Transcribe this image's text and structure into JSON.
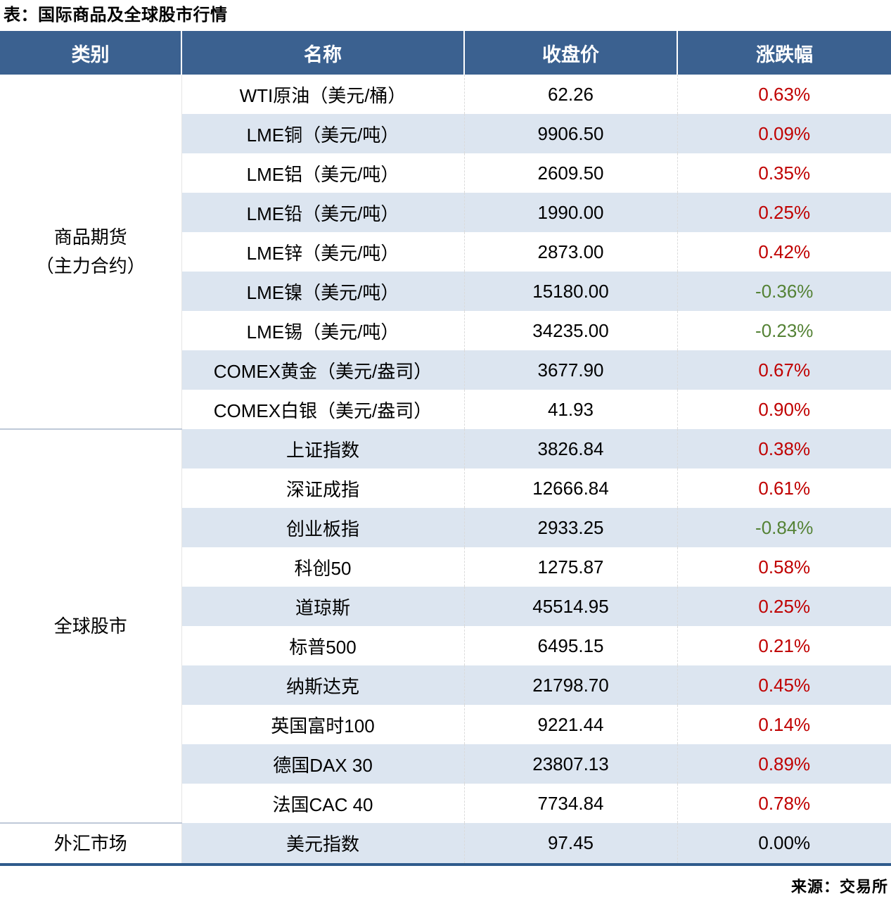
{
  "page_title": "表：国际商品及全球股市行情",
  "source_note": "来源：交易所",
  "colors": {
    "header_bg": "#3B6190",
    "row_alt_bg": "#DCE5F0",
    "row_bg": "#FFFFFF",
    "up_text": "#C00000",
    "down_text": "#548235",
    "flat_text": "#000000",
    "table_bottom_border": "#2F5B8C"
  },
  "table": {
    "headers": [
      "类别",
      "名称",
      "收盘价",
      "涨跌幅"
    ],
    "groups": [
      {
        "category_lines": [
          "商品期货",
          "（主力合约）"
        ],
        "rows": [
          {
            "name": "WTI原油（美元/桶）",
            "close": "62.26",
            "change": "0.63%",
            "direction": "up"
          },
          {
            "name": "LME铜（美元/吨）",
            "close": "9906.50",
            "change": "0.09%",
            "direction": "up"
          },
          {
            "name": "LME铝（美元/吨）",
            "close": "2609.50",
            "change": "0.35%",
            "direction": "up"
          },
          {
            "name": "LME铅（美元/吨）",
            "close": "1990.00",
            "change": "0.25%",
            "direction": "up"
          },
          {
            "name": "LME锌（美元/吨）",
            "close": "2873.00",
            "change": "0.42%",
            "direction": "up"
          },
          {
            "name": "LME镍（美元/吨）",
            "close": "15180.00",
            "change": "-0.36%",
            "direction": "down"
          },
          {
            "name": "LME锡（美元/吨）",
            "close": "34235.00",
            "change": "-0.23%",
            "direction": "down"
          },
          {
            "name": "COMEX黄金（美元/盎司）",
            "close": "3677.90",
            "change": "0.67%",
            "direction": "up"
          },
          {
            "name": "COMEX白银（美元/盎司）",
            "close": "41.93",
            "change": "0.90%",
            "direction": "up"
          }
        ]
      },
      {
        "category_lines": [
          "全球股市"
        ],
        "rows": [
          {
            "name": "上证指数",
            "close": "3826.84",
            "change": "0.38%",
            "direction": "up"
          },
          {
            "name": "深证成指",
            "close": "12666.84",
            "change": "0.61%",
            "direction": "up"
          },
          {
            "name": "创业板指",
            "close": "2933.25",
            "change": "-0.84%",
            "direction": "down"
          },
          {
            "name": "科创50",
            "close": "1275.87",
            "change": "0.58%",
            "direction": "up"
          },
          {
            "name": "道琼斯",
            "close": "45514.95",
            "change": "0.25%",
            "direction": "up"
          },
          {
            "name": "标普500",
            "close": "6495.15",
            "change": "0.21%",
            "direction": "up"
          },
          {
            "name": "纳斯达克",
            "close": "21798.70",
            "change": "0.45%",
            "direction": "up"
          },
          {
            "name": "英国富时100",
            "close": "9221.44",
            "change": "0.14%",
            "direction": "up"
          },
          {
            "name": "德国DAX 30",
            "close": "23807.13",
            "change": "0.89%",
            "direction": "up"
          },
          {
            "name": "法国CAC 40",
            "close": "7734.84",
            "change": "0.78%",
            "direction": "up"
          }
        ]
      },
      {
        "category_lines": [
          "外汇市场"
        ],
        "rows": [
          {
            "name": "美元指数",
            "close": "97.45",
            "change": "0.00%",
            "direction": "flat"
          }
        ]
      }
    ]
  },
  "chart_data": {
    "type": "table",
    "title": "表：国际商品及全球股市行情",
    "columns": [
      "类别",
      "名称",
      "收盘价",
      "涨跌幅"
    ],
    "rows": [
      [
        "商品期货（主力合约）",
        "WTI原油（美元/桶）",
        62.26,
        "0.63%"
      ],
      [
        "商品期货（主力合约）",
        "LME铜（美元/吨）",
        9906.5,
        "0.09%"
      ],
      [
        "商品期货（主力合约）",
        "LME铝（美元/吨）",
        2609.5,
        "0.35%"
      ],
      [
        "商品期货（主力合约）",
        "LME铅（美元/吨）",
        1990.0,
        "0.25%"
      ],
      [
        "商品期货（主力合约）",
        "LME锌（美元/吨）",
        2873.0,
        "0.42%"
      ],
      [
        "商品期货（主力合约）",
        "LME镍（美元/吨）",
        15180.0,
        "-0.36%"
      ],
      [
        "商品期货（主力合约）",
        "LME锡（美元/吨）",
        34235.0,
        "-0.23%"
      ],
      [
        "商品期货（主力合约）",
        "COMEX黄金（美元/盎司）",
        3677.9,
        "0.67%"
      ],
      [
        "商品期货（主力合约）",
        "COMEX白银（美元/盎司）",
        41.93,
        "0.90%"
      ],
      [
        "全球股市",
        "上证指数",
        3826.84,
        "0.38%"
      ],
      [
        "全球股市",
        "深证成指",
        12666.84,
        "0.61%"
      ],
      [
        "全球股市",
        "创业板指",
        2933.25,
        "-0.84%"
      ],
      [
        "全球股市",
        "科创50",
        1275.87,
        "0.58%"
      ],
      [
        "全球股市",
        "道琼斯",
        45514.95,
        "0.25%"
      ],
      [
        "全球股市",
        "标普500",
        6495.15,
        "0.21%"
      ],
      [
        "全球股市",
        "纳斯达克",
        21798.7,
        "0.45%"
      ],
      [
        "全球股市",
        "英国富时100",
        9221.44,
        "0.14%"
      ],
      [
        "全球股市",
        "德国DAX 30",
        23807.13,
        "0.89%"
      ],
      [
        "全球股市",
        "法国CAC 40",
        7734.84,
        "0.78%"
      ],
      [
        "外汇市场",
        "美元指数",
        97.45,
        "0.00%"
      ]
    ],
    "source": "来源：交易所",
    "layout": {
      "header_style": "dark-blue band, white bold text",
      "zebra_striping": true,
      "positive_color": "red",
      "negative_color": "green"
    }
  }
}
